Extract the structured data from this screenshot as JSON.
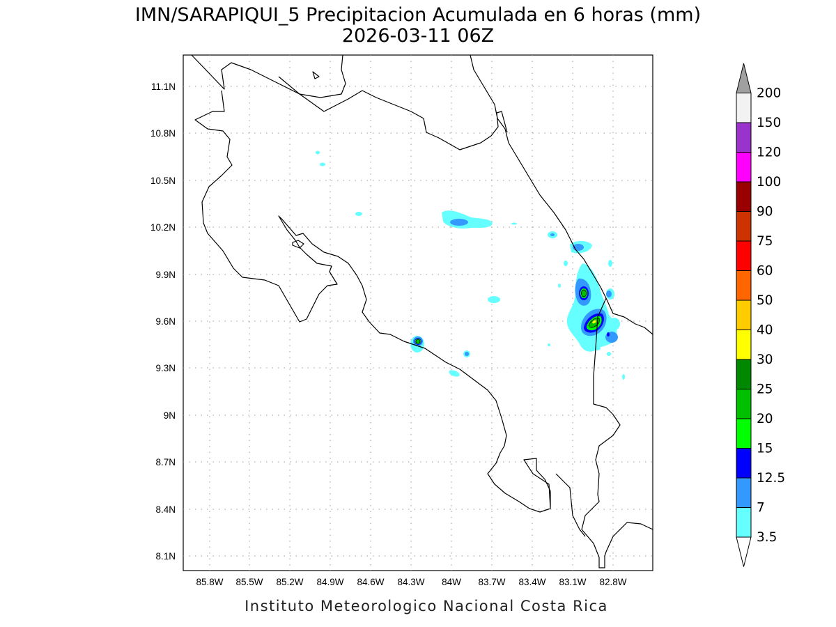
{
  "header": {
    "title": "IMN/SARAPIQUI_5 Precipitacion Acumulada en 6 horas (mm)",
    "date": "2026-03-11 06Z"
  },
  "footer": {
    "credit": "Instituto Meteorologico Nacional Costa Rica"
  },
  "axes": {
    "x_ticks": [
      "85.8W",
      "85.5W",
      "85.2W",
      "84.9W",
      "84.6W",
      "84.3W",
      "84W",
      "83.7W",
      "83.4W",
      "83.1W",
      "82.8W"
    ],
    "y_ticks": [
      "11.1N",
      "10.8N",
      "10.5N",
      "10.2N",
      "9.9N",
      "9.6N",
      "9.3N",
      "9N",
      "8.7N",
      "8.4N",
      "8.1N"
    ]
  },
  "colorbar": {
    "levels": [
      {
        "label": "200",
        "color": "#a0a0a0"
      },
      {
        "label": "150",
        "color": "#f2f2f2"
      },
      {
        "label": "120",
        "color": "#9933cc"
      },
      {
        "label": "100",
        "color": "#ff00ff"
      },
      {
        "label": "90",
        "color": "#990000"
      },
      {
        "label": "75",
        "color": "#cc3300"
      },
      {
        "label": "60",
        "color": "#ff0000"
      },
      {
        "label": "50",
        "color": "#ff6600"
      },
      {
        "label": "40",
        "color": "#ffcc00"
      },
      {
        "label": "30",
        "color": "#ffff00"
      },
      {
        "label": "25",
        "color": "#008800"
      },
      {
        "label": "20",
        "color": "#00c000"
      },
      {
        "label": "15",
        "color": "#00ff00"
      },
      {
        "label": "12.5",
        "color": "#0000ff"
      },
      {
        "label": "7",
        "color": "#3399ff"
      },
      {
        "label": "3.5",
        "color": "#66ffff"
      }
    ],
    "bottom_color": "#ffffff"
  }
}
